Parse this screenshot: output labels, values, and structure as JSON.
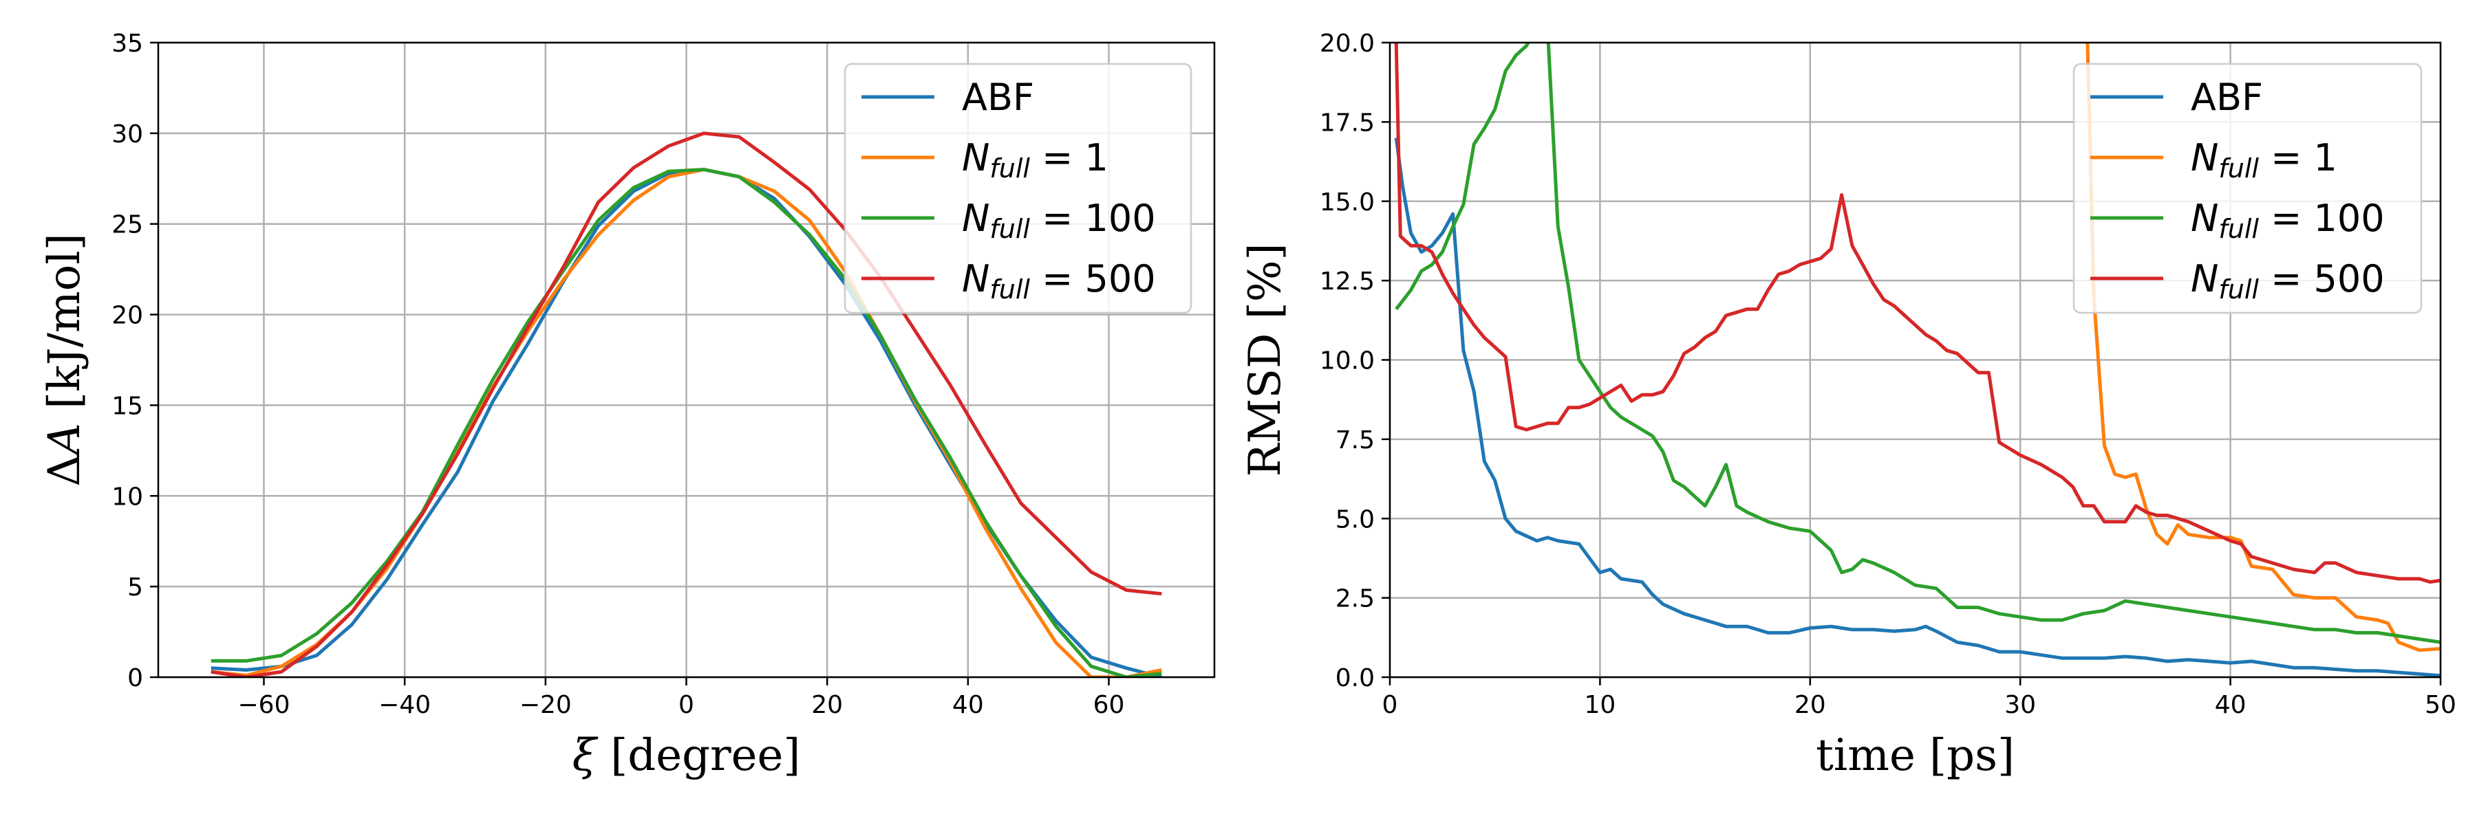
{
  "chart_data": [
    {
      "type": "line",
      "xlabel_symbol": "ξ",
      "xlabel_rest": " [degree]",
      "ylabel_rest": " [kJ/mol]",
      "ylabel_symbol": "A",
      "ylabel_prefix": "Δ",
      "xlim": [
        -75,
        75
      ],
      "ylim": [
        0,
        35
      ],
      "xticks": [
        -60,
        -40,
        -20,
        0,
        20,
        40,
        60
      ],
      "yticks": [
        0,
        5,
        10,
        15,
        20,
        25,
        30,
        35
      ],
      "grid": true,
      "legend_position": "top-right",
      "x": [
        -67.5,
        -62.5,
        -57.5,
        -52.5,
        -47.5,
        -42.5,
        -37.5,
        -32.5,
        -27.5,
        -22.5,
        -17.5,
        -12.5,
        -7.5,
        -2.5,
        2.5,
        7.5,
        12.5,
        17.5,
        22.5,
        27.5,
        32.5,
        37.5,
        42.5,
        47.5,
        52.5,
        57.5,
        62.5,
        67.5
      ],
      "series": [
        {
          "name": "ABF",
          "color": "#1f77b4",
          "values": [
            0.5,
            0.4,
            0.6,
            1.2,
            2.9,
            5.4,
            8.4,
            11.3,
            15.2,
            18.4,
            21.8,
            24.9,
            26.8,
            27.8,
            28.0,
            27.6,
            26.4,
            24.3,
            21.7,
            18.6,
            15.0,
            11.7,
            8.5,
            5.6,
            3.1,
            1.1,
            0.5,
            0.0
          ]
        },
        {
          "name": "N_full = 1",
          "legend_main": "N",
          "legend_sub": "full",
          "legend_rest": " = 1",
          "color": "#ff7f0e",
          "values": [
            0.3,
            0.1,
            0.6,
            1.8,
            3.6,
            6.0,
            9.0,
            12.6,
            16.0,
            19.1,
            21.9,
            24.4,
            26.3,
            27.6,
            28.0,
            27.6,
            26.8,
            25.2,
            22.4,
            18.9,
            15.2,
            11.9,
            8.2,
            4.9,
            1.9,
            0.0,
            0.0,
            0.4
          ]
        },
        {
          "name": "N_full = 100",
          "legend_main": "N",
          "legend_sub": "full",
          "legend_rest": " = 100",
          "color": "#2ca02c",
          "values": [
            0.9,
            0.9,
            1.2,
            2.4,
            4.1,
            6.4,
            9.1,
            12.8,
            16.4,
            19.6,
            22.4,
            25.2,
            27.0,
            27.9,
            28.0,
            27.6,
            26.2,
            24.4,
            22.0,
            18.9,
            15.3,
            12.1,
            8.6,
            5.6,
            2.8,
            0.6,
            0.0,
            0.2
          ]
        },
        {
          "name": "N_full = 500",
          "legend_main": "N",
          "legend_sub": "full",
          "legend_rest": " = 500",
          "color": "#d62728",
          "values": [
            0.3,
            0.0,
            0.3,
            1.7,
            3.6,
            6.2,
            9.0,
            12.3,
            15.9,
            19.3,
            22.6,
            26.2,
            28.1,
            29.3,
            30.0,
            29.8,
            28.4,
            26.9,
            24.7,
            22.1,
            19.1,
            16.1,
            12.8,
            9.6,
            7.7,
            5.8,
            4.8,
            4.6
          ]
        }
      ]
    },
    {
      "type": "line",
      "xlabel": "time [ps]",
      "ylabel": "RMSD [%]",
      "xlim": [
        0,
        50
      ],
      "ylim": [
        0,
        20
      ],
      "xticks": [
        0,
        10,
        20,
        30,
        40,
        50
      ],
      "yticks": [
        "0.0",
        "2.5",
        "5.0",
        "7.5",
        "10.0",
        "12.5",
        "15.0",
        "17.5",
        "20.0"
      ],
      "grid": true,
      "legend_position": "top-right",
      "series": [
        {
          "name": "ABF",
          "color": "#1f77b4",
          "x": [
            0.3,
            0.6,
            1.0,
            1.5,
            2.0,
            2.5,
            3.0,
            3.5,
            4.0,
            4.5,
            5.0,
            5.5,
            6.0,
            7.0,
            7.5,
            8.0,
            9.0,
            10.0,
            10.5,
            11.0,
            12.0,
            12.5,
            13.0,
            14.0,
            15.0,
            16.0,
            17.0,
            18.0,
            19.0,
            20.0,
            21.0,
            22.0,
            23.0,
            24.0,
            25.0,
            25.5,
            26.0,
            27.0,
            28.0,
            29.0,
            30.0,
            31.0,
            32.0,
            33.0,
            34.0,
            35.0,
            36.0,
            37.0,
            38.0,
            39.0,
            40.0,
            41.0,
            42.0,
            43.0,
            44.0,
            45.0,
            46.0,
            47.0,
            48.0,
            49.0,
            50.0
          ],
          "values": [
            17.0,
            15.5,
            14.0,
            13.4,
            13.6,
            14.0,
            14.6,
            10.3,
            9.0,
            6.8,
            6.2,
            5.0,
            4.6,
            4.3,
            4.4,
            4.3,
            4.2,
            3.3,
            3.4,
            3.1,
            3.0,
            2.6,
            2.3,
            2.0,
            1.8,
            1.6,
            1.6,
            1.4,
            1.4,
            1.55,
            1.6,
            1.5,
            1.5,
            1.45,
            1.5,
            1.6,
            1.45,
            1.1,
            1.0,
            0.8,
            0.8,
            0.7,
            0.6,
            0.6,
            0.6,
            0.65,
            0.6,
            0.5,
            0.55,
            0.5,
            0.45,
            0.5,
            0.4,
            0.3,
            0.3,
            0.25,
            0.2,
            0.2,
            0.15,
            0.1,
            0.05
          ]
        },
        {
          "name": "N_full = 1",
          "legend_main": "N",
          "legend_sub": "full",
          "legend_rest": " = 1",
          "color": "#ff7f0e",
          "x": [
            33.2,
            33.5,
            34.0,
            34.5,
            35.0,
            35.5,
            36.0,
            36.5,
            37.0,
            37.5,
            38.0,
            39.0,
            40.0,
            40.5,
            41.0,
            42.0,
            43.0,
            44.0,
            45.0,
            46.0,
            47.0,
            47.5,
            48.0,
            49.0,
            50.0
          ],
          "values": [
            20.0,
            12.0,
            7.3,
            6.4,
            6.3,
            6.4,
            5.3,
            4.5,
            4.2,
            4.8,
            4.5,
            4.4,
            4.4,
            4.3,
            3.5,
            3.4,
            2.6,
            2.5,
            2.5,
            1.9,
            1.8,
            1.7,
            1.1,
            0.85,
            0.9
          ]
        },
        {
          "name": "N_full = 100",
          "legend_main": "N",
          "legend_sub": "full",
          "legend_rest": " = 100",
          "color": "#2ca02c",
          "x": [
            0.3,
            1.0,
            1.5,
            2.0,
            2.5,
            3.0,
            3.5,
            4.0,
            4.5,
            5.0,
            5.5,
            6.0,
            6.5,
            7.0,
            7.5,
            8.0,
            8.5,
            9.0,
            10.0,
            10.5,
            11.0,
            12.0,
            12.5,
            13.0,
            13.5,
            14.0,
            15.0,
            15.5,
            16.0,
            16.5,
            17.0,
            18.0,
            19.0,
            20.0,
            21.0,
            21.5,
            22.0,
            22.5,
            23.0,
            24.0,
            25.0,
            26.0,
            27.0,
            28.0,
            29.0,
            30.0,
            31.0,
            32.0,
            33.0,
            34.0,
            35.0,
            36.0,
            37.0,
            38.0,
            39.0,
            40.0,
            41.0,
            42.0,
            43.0,
            44.0,
            45.0,
            46.0,
            47.0,
            48.0,
            49.0,
            50.0
          ],
          "values": [
            11.6,
            12.2,
            12.8,
            13.0,
            13.4,
            14.2,
            14.9,
            16.8,
            17.3,
            17.9,
            19.1,
            19.6,
            19.9,
            20.5,
            20.5,
            14.2,
            12.3,
            10.0,
            9.0,
            8.5,
            8.2,
            7.8,
            7.6,
            7.1,
            6.2,
            6.0,
            5.4,
            6.0,
            6.7,
            5.4,
            5.2,
            4.9,
            4.7,
            4.6,
            4.0,
            3.3,
            3.4,
            3.7,
            3.6,
            3.3,
            2.9,
            2.8,
            2.2,
            2.2,
            2.0,
            1.9,
            1.8,
            1.8,
            2.0,
            2.1,
            2.4,
            2.3,
            2.2,
            2.1,
            2.0,
            1.9,
            1.8,
            1.7,
            1.6,
            1.5,
            1.5,
            1.4,
            1.4,
            1.3,
            1.2,
            1.1
          ]
        },
        {
          "name": "N_full = 500",
          "legend_main": "N",
          "legend_sub": "full",
          "legend_rest": " = 500",
          "color": "#d62728",
          "x": [
            0.3,
            0.5,
            1.0,
            1.5,
            2.0,
            2.5,
            3.0,
            3.5,
            4.0,
            4.5,
            5.0,
            5.5,
            6.0,
            6.5,
            7.0,
            7.5,
            8.0,
            8.5,
            9.0,
            9.5,
            10.0,
            10.5,
            11.0,
            11.5,
            12.0,
            12.5,
            13.0,
            13.5,
            14.0,
            14.5,
            15.0,
            15.5,
            16.0,
            16.5,
            17.0,
            17.5,
            18.0,
            18.5,
            19.0,
            19.5,
            20.0,
            20.5,
            21.0,
            21.5,
            22.0,
            22.5,
            23.0,
            23.5,
            24.0,
            24.5,
            25.0,
            25.5,
            26.0,
            26.5,
            27.0,
            27.5,
            28.0,
            28.5,
            29.0,
            30.0,
            31.0,
            32.0,
            32.5,
            33.0,
            33.5,
            34.0,
            35.0,
            35.5,
            36.0,
            36.5,
            37.0,
            38.0,
            39.0,
            40.0,
            40.5,
            41.0,
            42.0,
            43.0,
            44.0,
            44.5,
            45.0,
            46.0,
            47.0,
            48.0,
            49.0,
            49.5,
            50.0
          ],
          "values": [
            20.0,
            13.9,
            13.6,
            13.6,
            13.4,
            12.7,
            12.1,
            11.6,
            11.1,
            10.7,
            10.4,
            10.1,
            7.9,
            7.8,
            7.9,
            8.0,
            8.0,
            8.5,
            8.5,
            8.6,
            8.8,
            9.0,
            9.2,
            8.7,
            8.9,
            8.9,
            9.0,
            9.5,
            10.2,
            10.4,
            10.7,
            10.9,
            11.4,
            11.5,
            11.6,
            11.6,
            12.2,
            12.7,
            12.8,
            13.0,
            13.1,
            13.2,
            13.5,
            15.2,
            13.6,
            13.0,
            12.4,
            11.9,
            11.7,
            11.4,
            11.1,
            10.8,
            10.6,
            10.3,
            10.2,
            9.9,
            9.6,
            9.6,
            7.4,
            7.0,
            6.7,
            6.3,
            6.0,
            5.4,
            5.4,
            4.9,
            4.9,
            5.4,
            5.2,
            5.1,
            5.1,
            4.9,
            4.6,
            4.3,
            4.2,
            3.8,
            3.6,
            3.4,
            3.3,
            3.6,
            3.6,
            3.3,
            3.2,
            3.1,
            3.1,
            3.0,
            3.05
          ]
        }
      ]
    }
  ]
}
